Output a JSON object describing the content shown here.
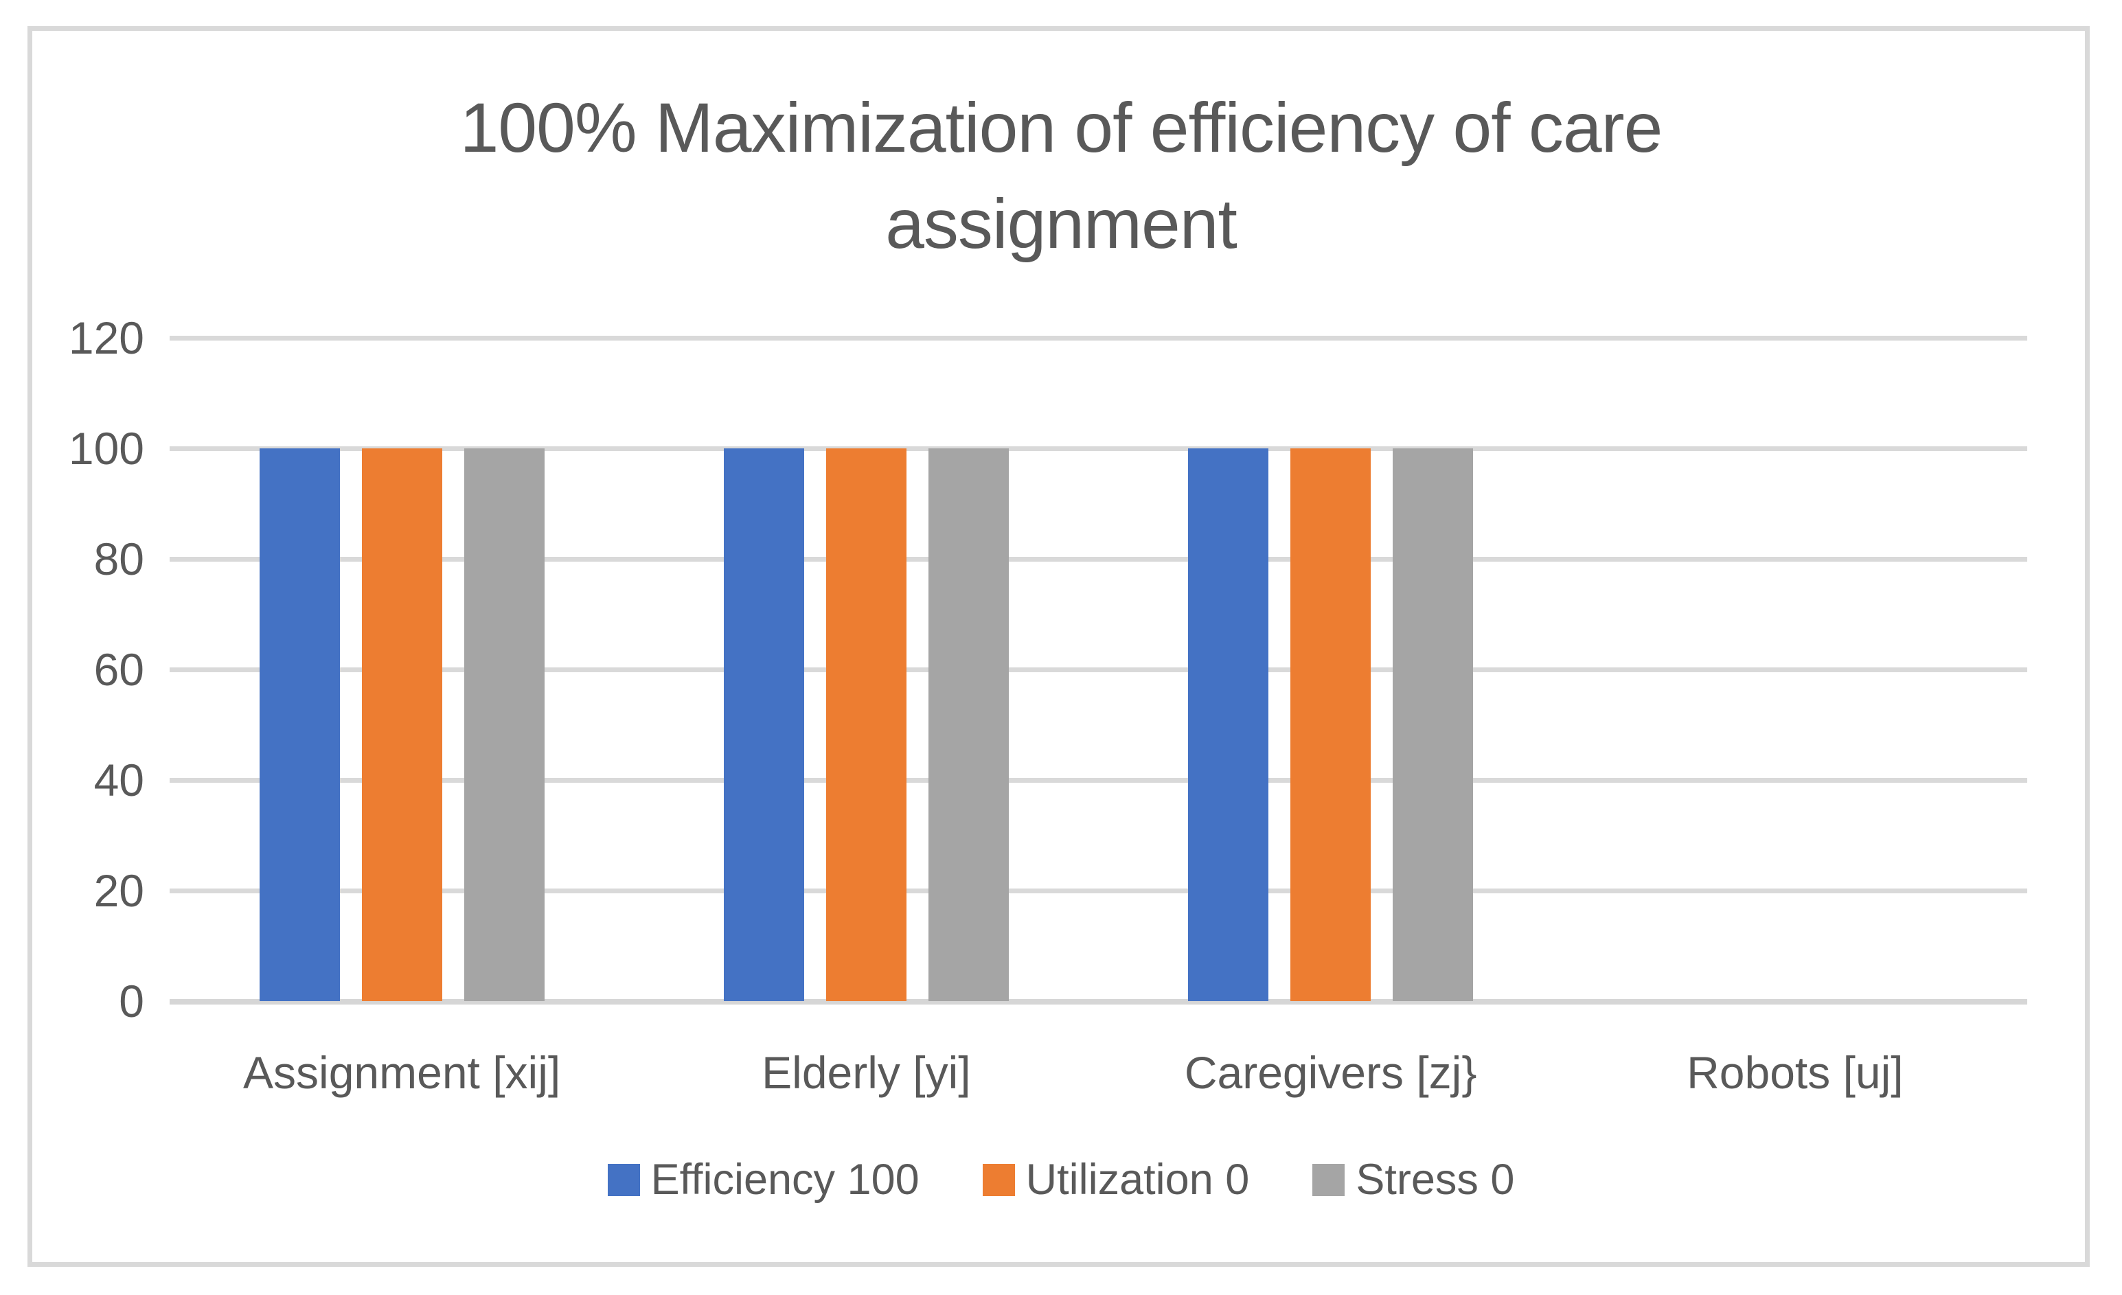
{
  "chart": {
    "background_color": "#ffffff",
    "border_color": "#d9d9d9",
    "grid_color": "#d9d9d9",
    "text_color": "#595959"
  },
  "chart_data": {
    "type": "bar",
    "title": "100% Maximization of efficiency of care assignment",
    "title_lines": [
      "100% Maximization of efficiency of care",
      "assignment"
    ],
    "categories": [
      "Assignment [xij]",
      "Elderly [yi]",
      "Caregivers [zj}",
      "Robots [uj]"
    ],
    "series": [
      {
        "name": "Efficiency 100",
        "color": "#4472C4",
        "values": [
          100,
          100,
          100,
          0
        ]
      },
      {
        "name": "Utilization 0",
        "color": "#ED7D31",
        "values": [
          100,
          100,
          100,
          0
        ]
      },
      {
        "name": "Stress 0",
        "color": "#A5A5A5",
        "values": [
          100,
          100,
          100,
          0
        ]
      }
    ],
    "xlabel": "",
    "ylabel": "",
    "ylim": [
      0,
      120
    ],
    "yticks": [
      0,
      20,
      40,
      60,
      80,
      100,
      120
    ],
    "grid": true,
    "legend_position": "bottom"
  }
}
